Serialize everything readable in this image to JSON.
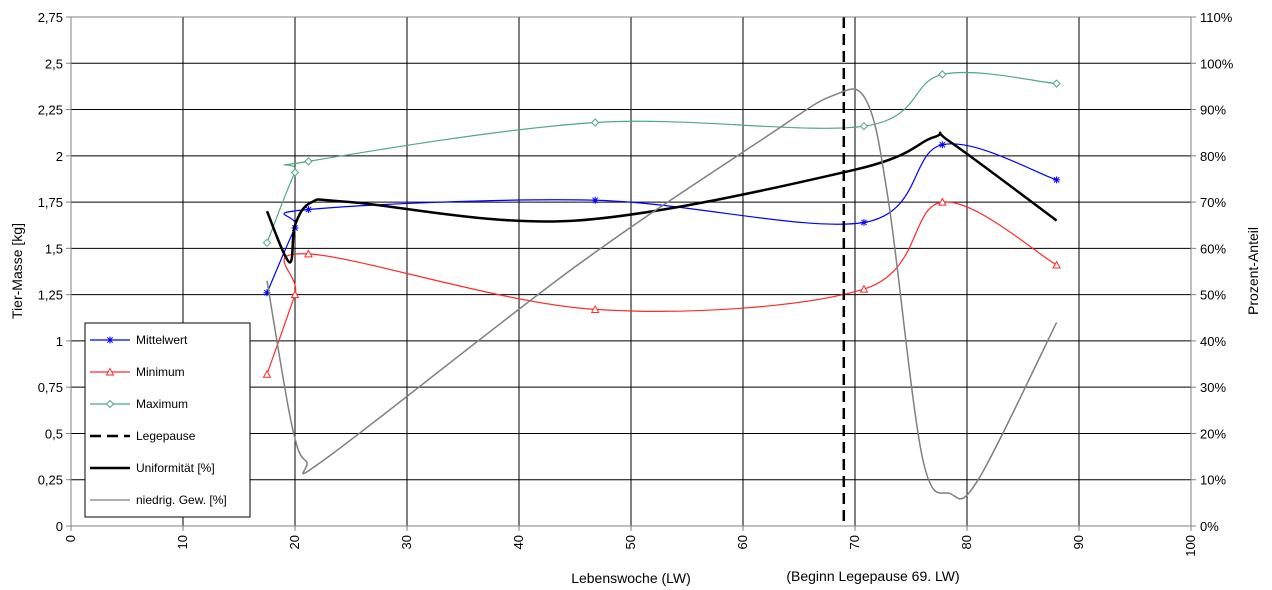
{
  "chart_data": {
    "type": "line",
    "xlabel": "Lebenswoche (LW)",
    "ylabel": "Tier-Masse [kg]",
    "y2label": "Prozent-Anteil",
    "annotation": "(Beginn Legepause 69. LW)",
    "xlim": [
      0,
      100
    ],
    "ylim": [
      0,
      2.75
    ],
    "y2lim": [
      0,
      110
    ],
    "x_ticks": [
      "0",
      "10",
      "20",
      "30",
      "40",
      "50",
      "60",
      "70",
      "80",
      "90",
      "100"
    ],
    "y_ticks": [
      "0",
      "0,25",
      "0,5",
      "0,75",
      "1",
      "1,25",
      "1,5",
      "1,75",
      "2",
      "2,25",
      "2,5",
      "2,75"
    ],
    "y2_ticks": [
      "0%",
      "10%",
      "20%",
      "30%",
      "40%",
      "50%",
      "60%",
      "70%",
      "80%",
      "90%",
      "100%",
      "110%"
    ],
    "grid": true,
    "legend_position": "bottom-left",
    "series": [
      {
        "name": "Mittelwert",
        "axis": "left",
        "color": "#0000ff",
        "marker": "star",
        "x": [
          17.5,
          20,
          21.2,
          46.8,
          70.8,
          77.8,
          88
        ],
        "y": [
          1.26,
          1.61,
          1.71,
          1.76,
          1.64,
          2.06,
          1.87
        ]
      },
      {
        "name": "Minimum",
        "axis": "left",
        "color": "#ff2a2a",
        "marker": "triangle",
        "x": [
          17.5,
          20,
          21.2,
          46.8,
          70.8,
          77.8,
          88
        ],
        "y": [
          0.82,
          1.25,
          1.47,
          1.17,
          1.28,
          1.75,
          1.41
        ]
      },
      {
        "name": "Maximum",
        "axis": "left",
        "color": "#4fa883",
        "marker": "diamond",
        "x": [
          17.5,
          20,
          21.2,
          46.8,
          70.8,
          77.8,
          88
        ],
        "y": [
          1.53,
          1.91,
          1.97,
          2.18,
          2.16,
          2.44,
          2.39
        ]
      },
      {
        "name": "Legepause",
        "type": "vline",
        "color": "#000000",
        "dashed": true,
        "x": 69
      },
      {
        "name": "Uniformität [%]",
        "axis": "right",
        "color": "#000000",
        "marker": "none",
        "x": [
          17.5,
          19.5,
          20,
          21.5,
          25,
          45,
          70,
          77,
          78.5,
          88
        ],
        "y": [
          68,
          57,
          65,
          70,
          70,
          66,
          77,
          84,
          83,
          66
        ]
      },
      {
        "name": "niedrig. Gew. [%]",
        "axis": "right",
        "color": "#808080",
        "marker": "none",
        "x": [
          17.5,
          19.7,
          21,
          23,
          45,
          62,
          68,
          71,
          73,
          76,
          78.5,
          81,
          88
        ],
        "y": [
          53,
          22,
          14,
          15,
          56,
          84,
          93,
          92,
          70,
          15,
          7,
          10,
          44
        ]
      }
    ]
  }
}
